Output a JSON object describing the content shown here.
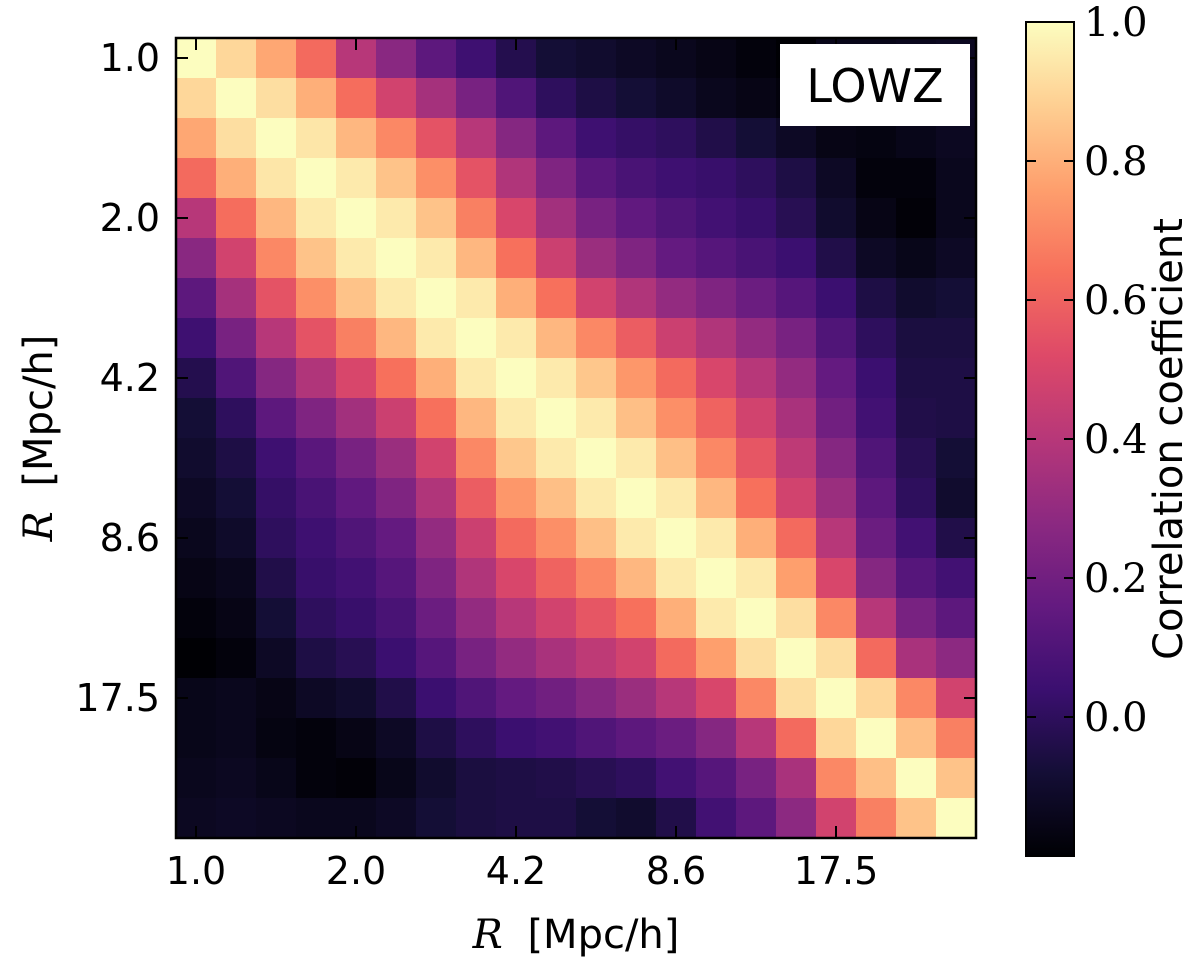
{
  "chart_data": {
    "type": "heatmap",
    "tag": "LOWZ",
    "xlabel": {
      "var": "R",
      "unit": "[Mpc/h]"
    },
    "ylabel": {
      "var": "R",
      "unit": "[Mpc/h]"
    },
    "tick_labels": [
      "1.0",
      "2.0",
      "4.2",
      "8.6",
      "17.5"
    ],
    "tick_bins": [
      0,
      4,
      8,
      12,
      16
    ],
    "colorbar": {
      "label": "Correlation coefficient",
      "vmin": -0.2,
      "vmax": 1.0,
      "tick_values": [
        0.0,
        0.2,
        0.4,
        0.6,
        0.8,
        1.0
      ],
      "tick_labels": [
        "0.0",
        "0.2",
        "0.4",
        "0.6",
        "0.8",
        "1.0"
      ],
      "colormap": "magma"
    },
    "n_bins": 20,
    "matrix": [
      [
        1.0,
        0.9,
        0.78,
        0.62,
        0.4,
        0.27,
        0.14,
        0.05,
        -0.03,
        -0.08,
        -0.1,
        -0.12,
        -0.14,
        -0.16,
        -0.18,
        -0.2,
        -0.15,
        -0.15,
        -0.14,
        -0.13
      ],
      [
        0.9,
        1.0,
        0.92,
        0.8,
        0.63,
        0.48,
        0.35,
        0.22,
        0.1,
        0.0,
        -0.05,
        -0.08,
        -0.11,
        -0.14,
        -0.16,
        -0.18,
        -0.14,
        -0.14,
        -0.13,
        -0.12
      ],
      [
        0.78,
        0.92,
        1.0,
        0.94,
        0.82,
        0.7,
        0.55,
        0.4,
        0.26,
        0.14,
        0.05,
        0.02,
        0.0,
        -0.04,
        -0.08,
        -0.12,
        -0.16,
        -0.17,
        -0.15,
        -0.13
      ],
      [
        0.62,
        0.8,
        0.94,
        1.0,
        0.95,
        0.85,
        0.72,
        0.55,
        0.38,
        0.24,
        0.13,
        0.08,
        0.05,
        0.03,
        0.0,
        -0.05,
        -0.12,
        -0.18,
        -0.18,
        -0.14
      ],
      [
        0.4,
        0.63,
        0.82,
        0.95,
        1.0,
        0.95,
        0.85,
        0.68,
        0.5,
        0.34,
        0.22,
        0.15,
        0.1,
        0.06,
        0.03,
        -0.02,
        -0.1,
        -0.16,
        -0.19,
        -0.14
      ],
      [
        0.27,
        0.48,
        0.7,
        0.85,
        0.95,
        1.0,
        0.95,
        0.82,
        0.64,
        0.46,
        0.32,
        0.24,
        0.16,
        0.12,
        0.08,
        0.04,
        -0.04,
        -0.12,
        -0.15,
        -0.12
      ],
      [
        0.14,
        0.35,
        0.55,
        0.72,
        0.85,
        0.95,
        1.0,
        0.95,
        0.8,
        0.64,
        0.48,
        0.38,
        0.3,
        0.24,
        0.18,
        0.12,
        0.04,
        -0.05,
        -0.1,
        -0.08
      ],
      [
        0.05,
        0.22,
        0.4,
        0.55,
        0.68,
        0.82,
        0.95,
        1.0,
        0.95,
        0.82,
        0.7,
        0.58,
        0.46,
        0.38,
        0.3,
        0.22,
        0.1,
        0.0,
        -0.06,
        -0.06
      ],
      [
        -0.03,
        0.1,
        0.26,
        0.38,
        0.5,
        0.64,
        0.8,
        0.95,
        1.0,
        0.95,
        0.86,
        0.74,
        0.62,
        0.5,
        0.4,
        0.3,
        0.16,
        0.04,
        -0.05,
        -0.05
      ],
      [
        -0.08,
        0.0,
        0.14,
        0.24,
        0.34,
        0.46,
        0.64,
        0.82,
        0.95,
        1.0,
        0.95,
        0.84,
        0.72,
        0.6,
        0.48,
        0.36,
        0.2,
        0.06,
        -0.04,
        -0.05
      ],
      [
        -0.1,
        -0.05,
        0.05,
        0.13,
        0.22,
        0.32,
        0.48,
        0.7,
        0.86,
        0.95,
        1.0,
        0.95,
        0.84,
        0.7,
        0.56,
        0.42,
        0.26,
        0.1,
        -0.02,
        -0.08
      ],
      [
        -0.12,
        -0.08,
        0.02,
        0.08,
        0.15,
        0.24,
        0.38,
        0.58,
        0.74,
        0.84,
        0.95,
        1.0,
        0.95,
        0.82,
        0.64,
        0.48,
        0.32,
        0.14,
        0.0,
        -0.1
      ],
      [
        -0.14,
        -0.11,
        0.0,
        0.05,
        0.1,
        0.16,
        0.3,
        0.46,
        0.62,
        0.72,
        0.84,
        0.95,
        1.0,
        0.95,
        0.8,
        0.62,
        0.4,
        0.18,
        0.06,
        -0.04
      ],
      [
        -0.16,
        -0.14,
        -0.04,
        0.03,
        0.06,
        0.12,
        0.24,
        0.38,
        0.5,
        0.6,
        0.7,
        0.82,
        0.95,
        1.0,
        0.95,
        0.76,
        0.5,
        0.26,
        0.12,
        0.06
      ],
      [
        -0.18,
        -0.16,
        -0.08,
        0.0,
        0.03,
        0.08,
        0.18,
        0.3,
        0.4,
        0.48,
        0.56,
        0.64,
        0.8,
        0.95,
        1.0,
        0.92,
        0.7,
        0.4,
        0.22,
        0.14
      ],
      [
        -0.2,
        -0.18,
        -0.12,
        -0.05,
        -0.02,
        0.04,
        0.12,
        0.22,
        0.3,
        0.36,
        0.42,
        0.48,
        0.62,
        0.76,
        0.92,
        1.0,
        0.92,
        0.62,
        0.36,
        0.28
      ],
      [
        -0.15,
        -0.14,
        -0.16,
        -0.12,
        -0.1,
        -0.04,
        0.04,
        0.1,
        0.16,
        0.2,
        0.26,
        0.32,
        0.4,
        0.5,
        0.7,
        0.92,
        1.0,
        0.9,
        0.7,
        0.48
      ],
      [
        -0.15,
        -0.14,
        -0.17,
        -0.18,
        -0.16,
        -0.12,
        -0.05,
        0.0,
        0.04,
        0.06,
        0.1,
        0.14,
        0.18,
        0.26,
        0.4,
        0.62,
        0.9,
        1.0,
        0.84,
        0.68
      ],
      [
        -0.14,
        -0.13,
        -0.15,
        -0.18,
        -0.19,
        -0.15,
        -0.1,
        -0.06,
        -0.05,
        -0.04,
        -0.02,
        0.0,
        0.06,
        0.12,
        0.22,
        0.36,
        0.7,
        0.84,
        1.0,
        0.85
      ],
      [
        -0.13,
        -0.12,
        -0.13,
        -0.14,
        -0.14,
        -0.12,
        -0.08,
        -0.06,
        -0.05,
        -0.05,
        -0.08,
        -0.1,
        -0.04,
        0.06,
        0.14,
        0.28,
        0.48,
        0.68,
        0.85,
        1.0
      ]
    ]
  }
}
